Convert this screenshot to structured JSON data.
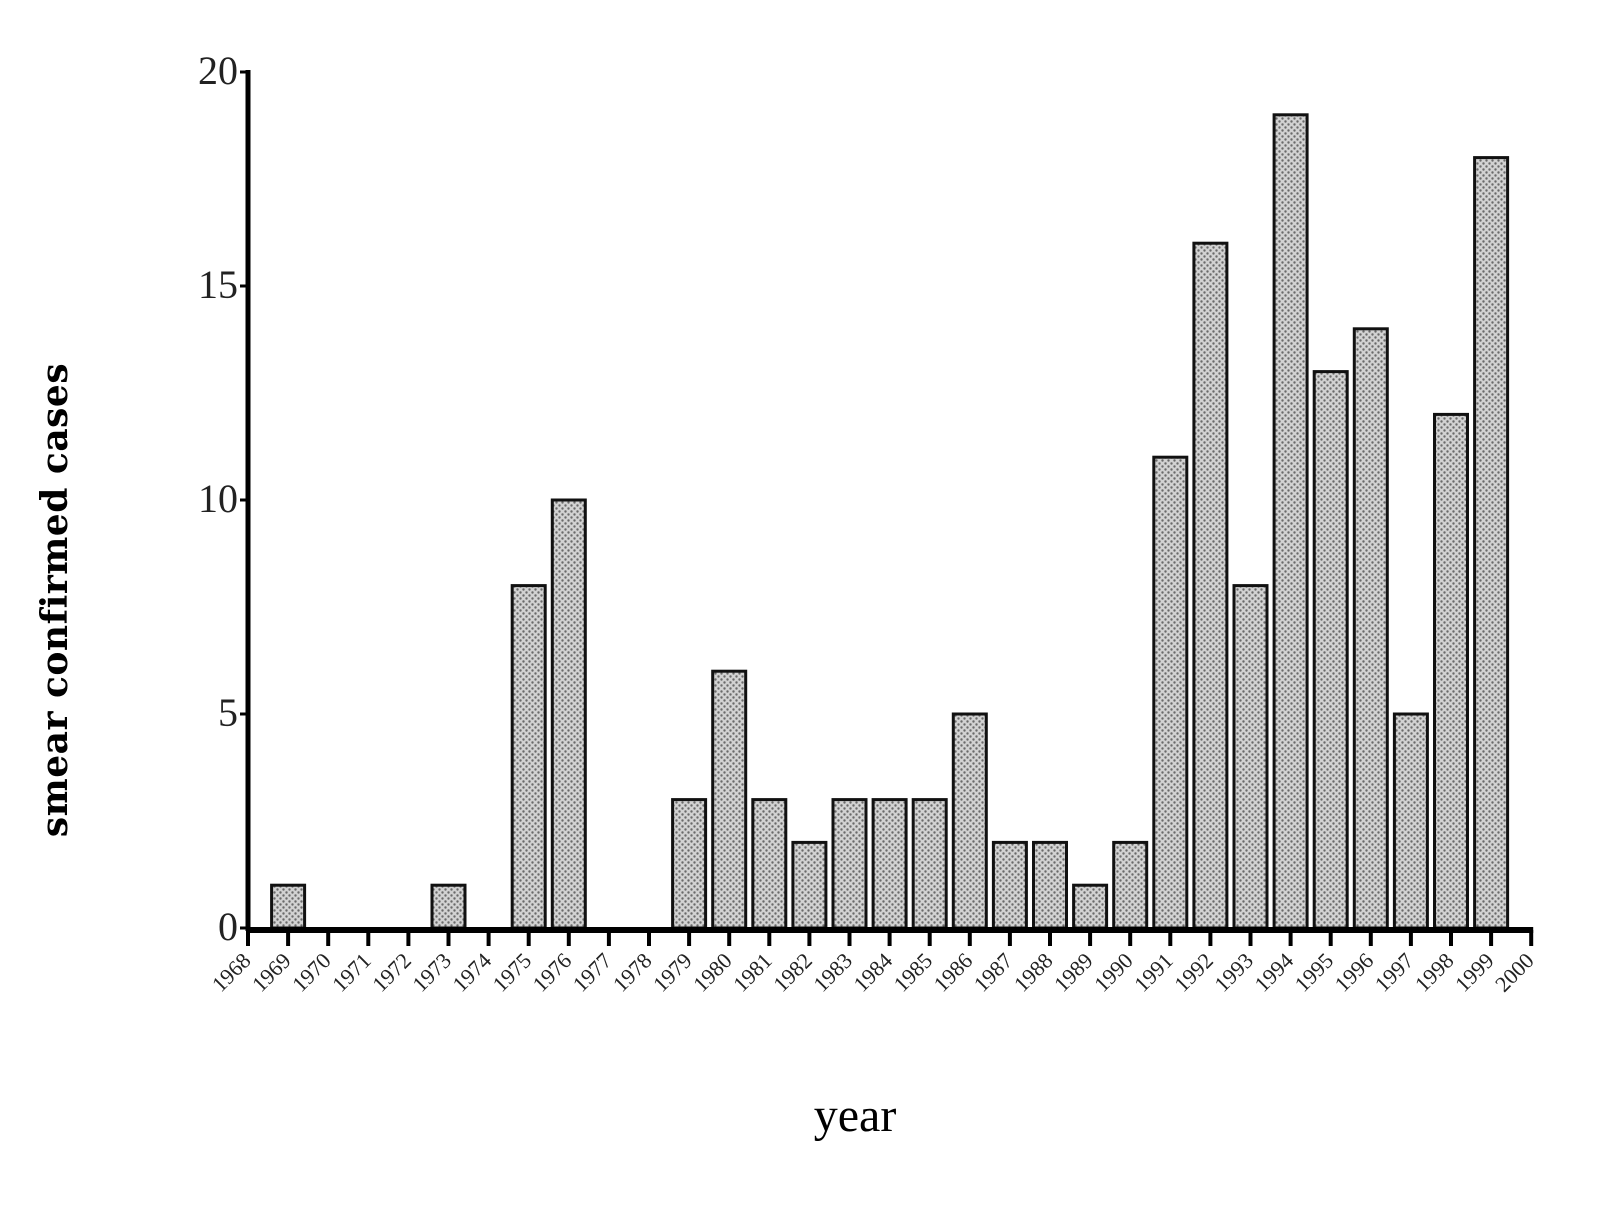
{
  "chart_data": {
    "type": "bar",
    "title": "",
    "xlabel": "year",
    "ylabel": "smear confirmed cases",
    "ylim": [
      0,
      20
    ],
    "yticks": [
      0,
      5,
      10,
      15,
      20
    ],
    "ytick_labels": [
      "0",
      "5",
      "10",
      "15",
      "20"
    ],
    "grid": false,
    "legend": null,
    "categories": [
      "1968",
      "1969",
      "1970",
      "1971",
      "1972",
      "1973",
      "1974",
      "1975",
      "1976",
      "1977",
      "1978",
      "1979",
      "1980",
      "1981",
      "1982",
      "1983",
      "1984",
      "1985",
      "1986",
      "1987",
      "1988",
      "1989",
      "1990",
      "1991",
      "1992",
      "1993",
      "1994",
      "1995",
      "1996",
      "1997",
      "1998",
      "1999",
      "2000"
    ],
    "values": [
      0,
      1,
      0,
      0,
      0,
      1,
      0,
      8,
      10,
      0,
      0,
      3,
      6,
      3,
      2,
      3,
      3,
      3,
      5,
      2,
      2,
      1,
      2,
      11,
      16,
      8,
      19,
      13,
      14,
      5,
      12,
      18,
      0
    ],
    "bar_style": {
      "fill": "#c8c8c8",
      "stroke": "#111111",
      "pattern": "dotted-halftone"
    }
  }
}
